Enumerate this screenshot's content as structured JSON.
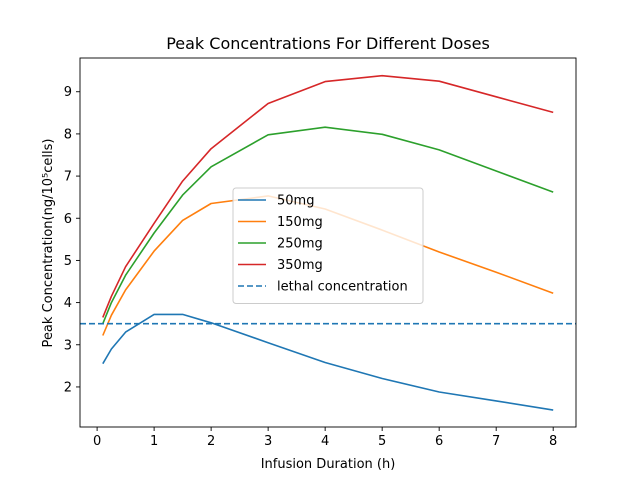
{
  "chart_data": {
    "type": "line",
    "title": "Peak Concentrations For Different Doses",
    "xlabel": "Infusion Duration (h)",
    "ylabel": "Peak Concentration(ng/10⁵cells)",
    "xlim": [
      -0.3,
      8.4
    ],
    "ylim": [
      1.05,
      9.8
    ],
    "xticks": [
      0,
      1,
      2,
      3,
      4,
      5,
      6,
      7,
      8
    ],
    "yticks": [
      2,
      3,
      4,
      5,
      6,
      7,
      8,
      9
    ],
    "grid": false,
    "legend_position": "center",
    "x": [
      0.1,
      0.25,
      0.5,
      1,
      1.5,
      2,
      3,
      4,
      5,
      6,
      7,
      8
    ],
    "series": [
      {
        "name": "50mg",
        "color": "#1f77b4",
        "values": [
          2.55,
          2.9,
          3.3,
          3.72,
          3.72,
          3.52,
          3.05,
          2.58,
          2.2,
          1.88,
          1.67,
          1.45
        ]
      },
      {
        "name": "150mg",
        "color": "#ff7f0e",
        "values": [
          3.22,
          3.7,
          4.3,
          5.22,
          5.95,
          6.35,
          6.53,
          6.22,
          5.72,
          5.2,
          4.72,
          4.22
        ]
      },
      {
        "name": "250mg",
        "color": "#2ca02c",
        "values": [
          3.5,
          4.0,
          4.65,
          5.65,
          6.55,
          7.22,
          7.98,
          8.16,
          7.99,
          7.62,
          7.12,
          6.62
        ]
      },
      {
        "name": "350mg",
        "color": "#d62728",
        "values": [
          3.65,
          4.15,
          4.85,
          5.88,
          6.88,
          7.65,
          8.72,
          9.24,
          9.38,
          9.25,
          8.88,
          8.51
        ]
      }
    ],
    "reference_lines": [
      {
        "name": "lethal concentration",
        "y": 3.5,
        "color": "#1f77b4",
        "style": "dashed"
      }
    ]
  }
}
